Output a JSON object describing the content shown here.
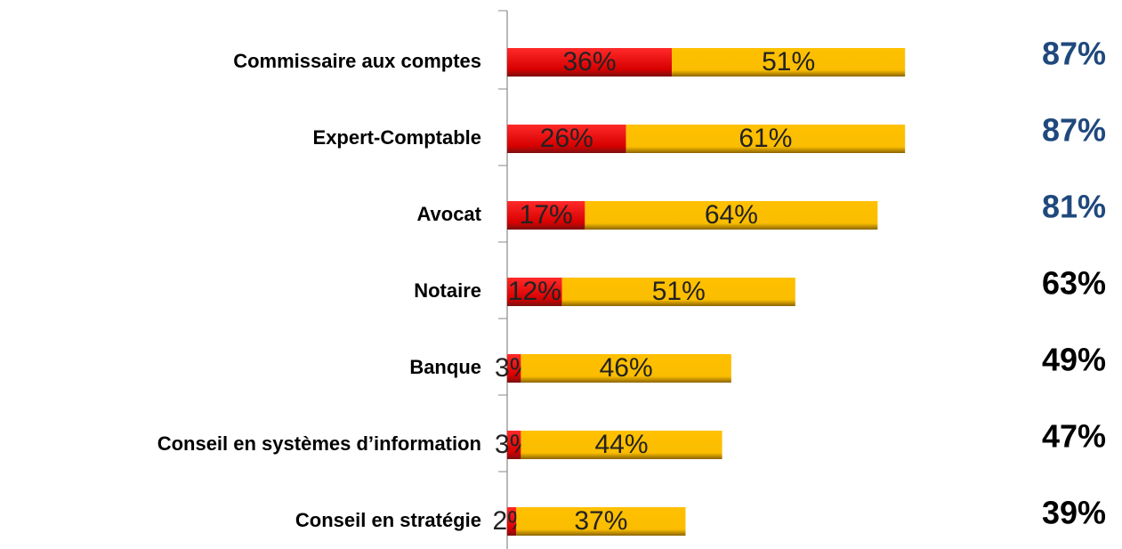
{
  "chart_data": {
    "type": "stacked-bar-horizontal",
    "categories": [
      "Commissaire aux comptes",
      "Expert-Comptable",
      "Avocat",
      "Notaire",
      "Banque",
      "Conseil en systèmes d’information",
      "Conseil en stratégie"
    ],
    "series": [
      {
        "color": "#e00000",
        "values": [
          36,
          26,
          17,
          12,
          3,
          3,
          2
        ],
        "value_labels": [
          "36%",
          "26%",
          "17%",
          "12%",
          "3%",
          "3%",
          "2%"
        ]
      },
      {
        "color": "#ffc000",
        "values": [
          51,
          61,
          64,
          51,
          46,
          44,
          37
        ],
        "value_labels": [
          "51%",
          "61%",
          "64%",
          "51%",
          "46%",
          "44%",
          "37%"
        ]
      }
    ],
    "totals": [
      87,
      87,
      81,
      63,
      49,
      47,
      39
    ],
    "total_labels": [
      "87%",
      "87%",
      "81%",
      "63%",
      "49%",
      "47%",
      "39%"
    ],
    "total_colors": [
      "#1f497d",
      "#1f497d",
      "#1f497d",
      "#000000",
      "#000000",
      "#000000",
      "#000000"
    ],
    "xlim": [
      0,
      100
    ]
  }
}
